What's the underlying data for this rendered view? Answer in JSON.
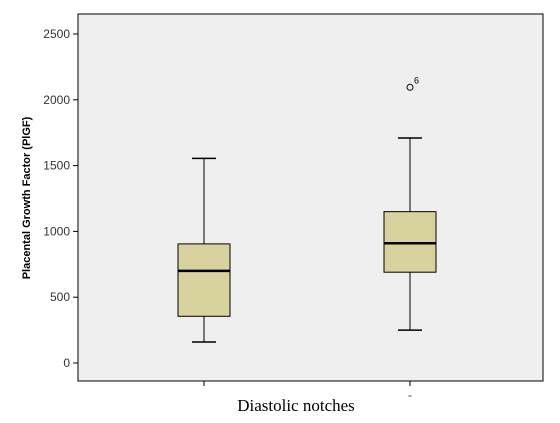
{
  "chart_data": {
    "type": "boxplot",
    "xlabel": "Diastolic notches",
    "ylabel": "Placental Growth Factor (PlGF)",
    "ylim": [
      0,
      2500
    ],
    "yticks": [
      0,
      500,
      1000,
      1500,
      2000,
      2500
    ],
    "categories": [
      "",
      "-"
    ],
    "boxes": [
      {
        "category": "",
        "whisker_low": 160,
        "q1": 355,
        "median": 700,
        "q3": 905,
        "whisker_high": 1555,
        "outliers": []
      },
      {
        "category": "-",
        "whisker_low": 250,
        "q1": 690,
        "median": 910,
        "q3": 1150,
        "whisker_high": 1710,
        "outliers": [
          {
            "value": 2095,
            "label": "6"
          }
        ]
      }
    ],
    "colors": {
      "plot_background": "#efefef",
      "box_fill": "#d8d29f",
      "line": "#000000"
    },
    "grid": false
  }
}
